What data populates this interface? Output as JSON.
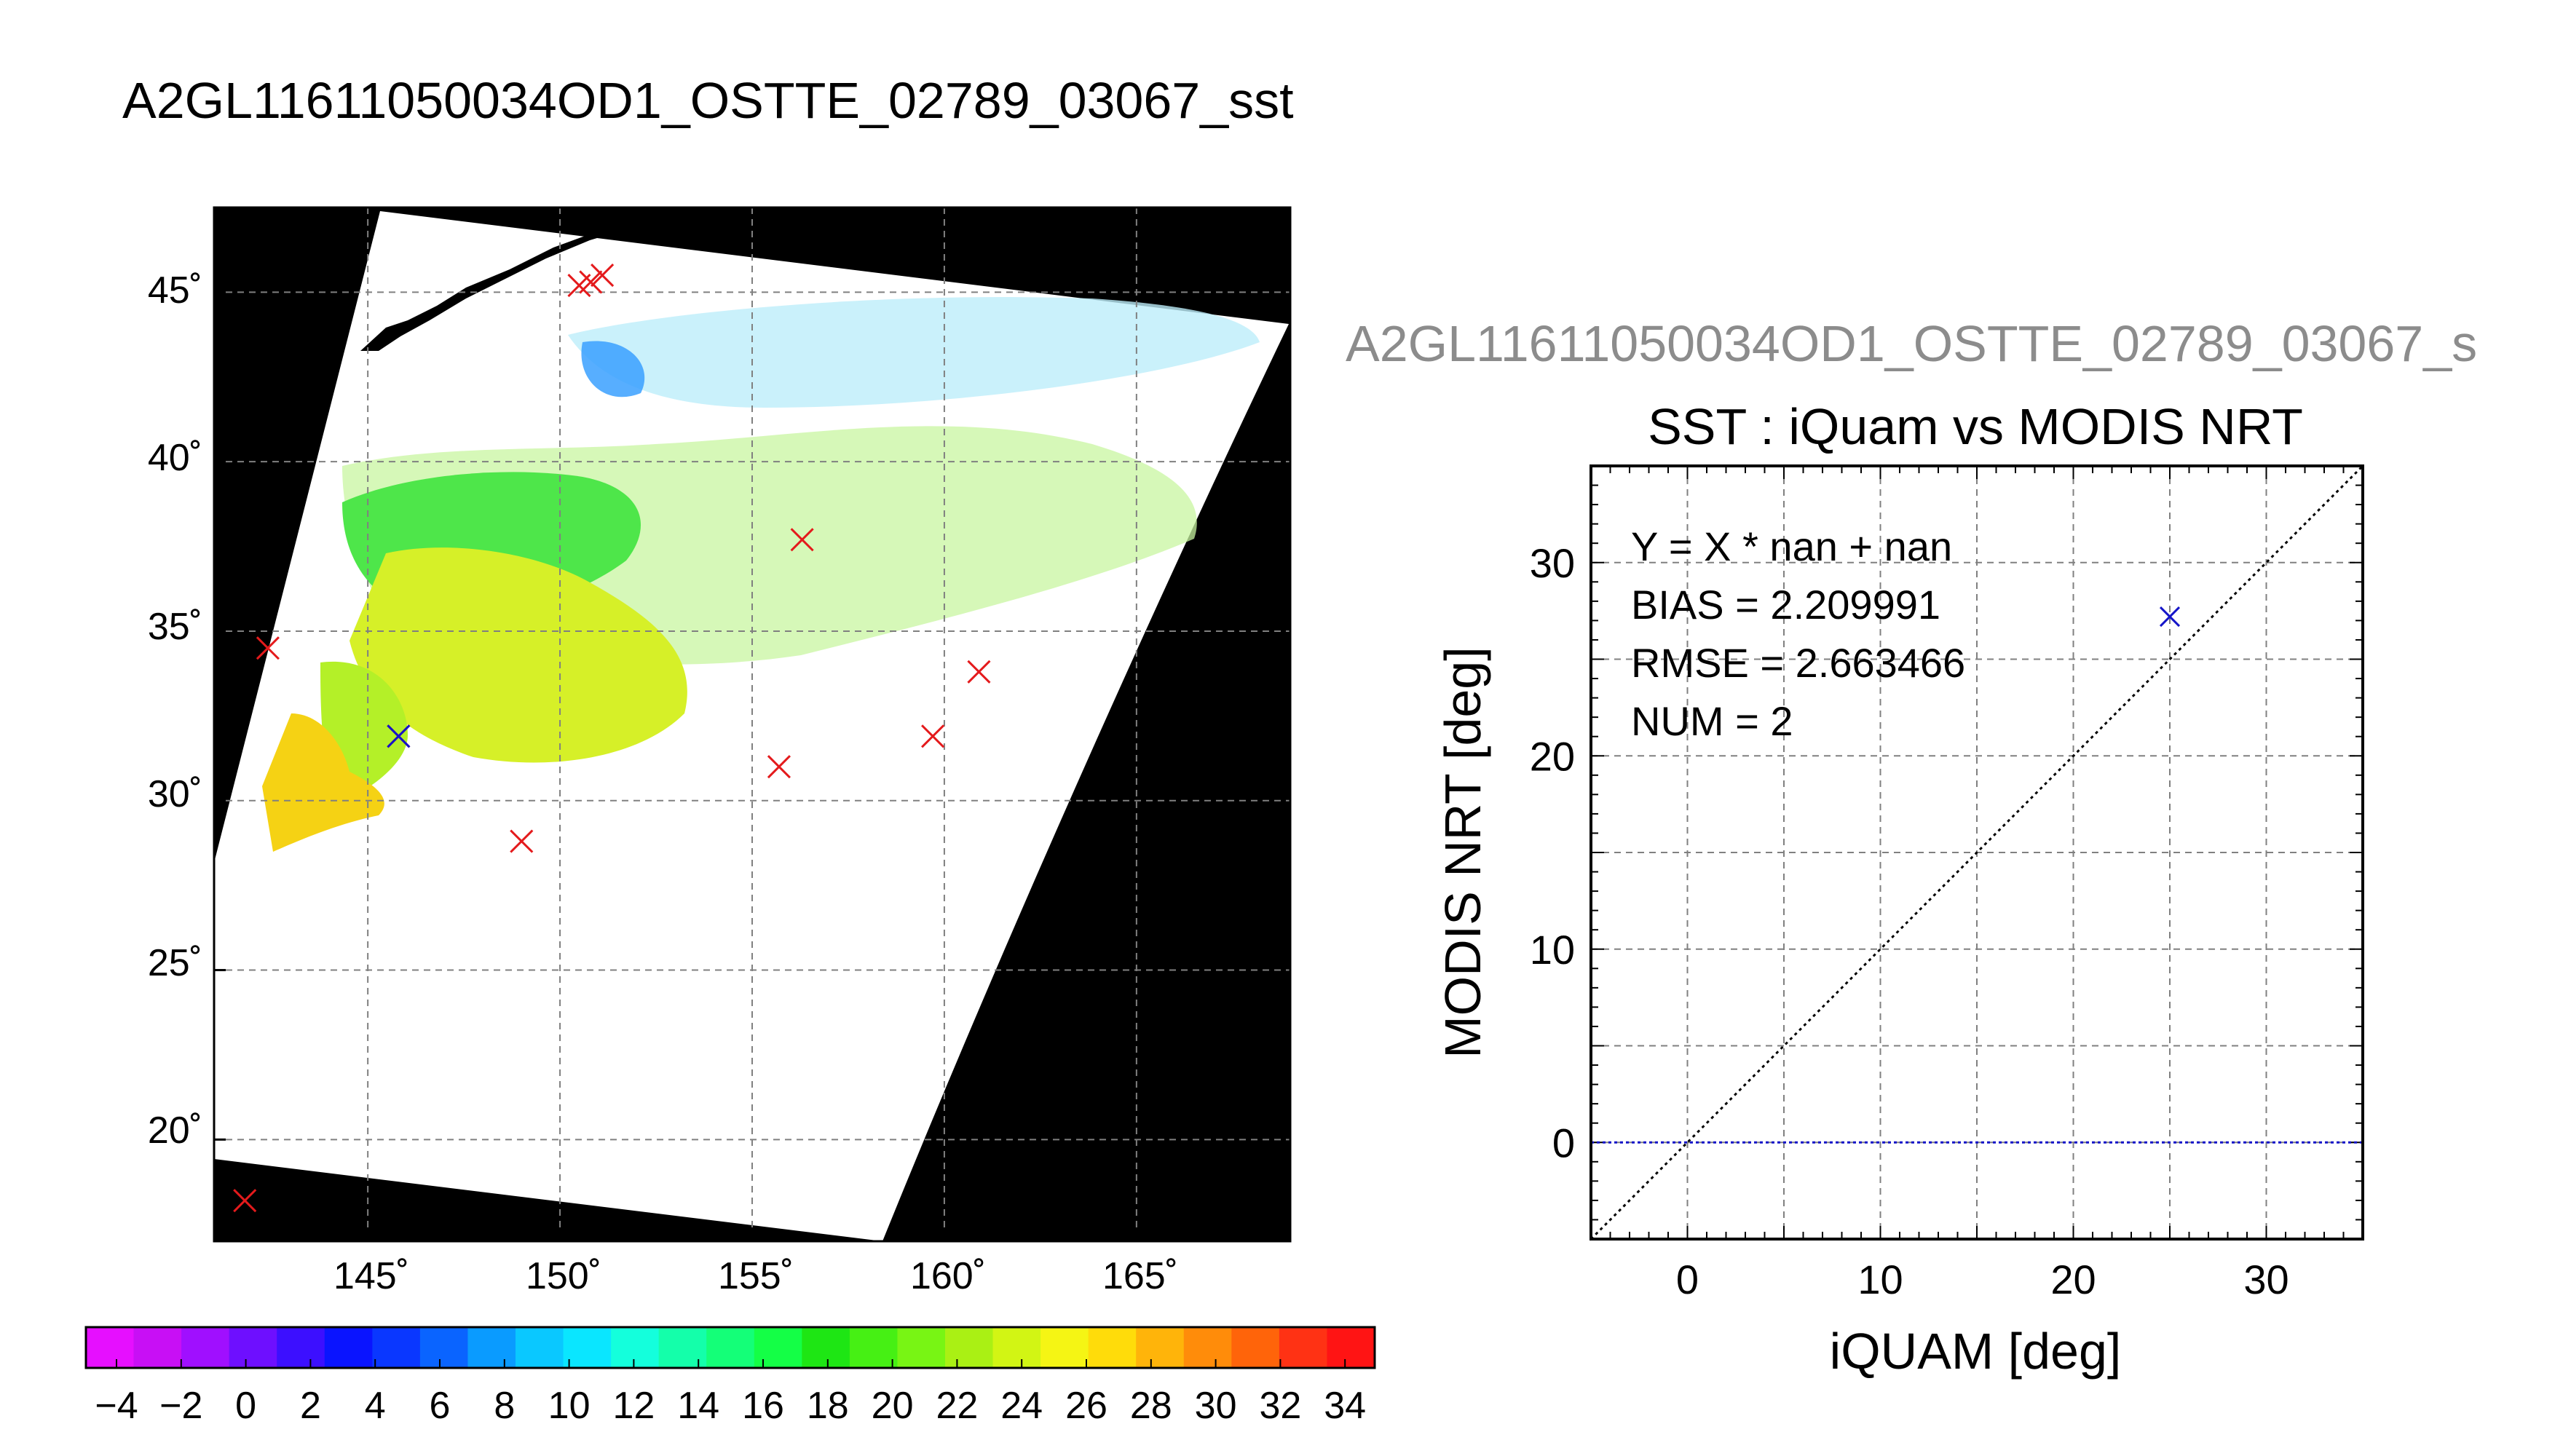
{
  "page_title": "A2GL11611050034OD1_OSTTE_02789_03067_sst",
  "map_panel": {
    "lat_ticks": [
      "20˚",
      "25˚",
      "30˚",
      "35˚",
      "40˚",
      "45˚"
    ],
    "lon_ticks": [
      "145˚",
      "150˚",
      "155˚",
      "160˚",
      "165˚"
    ],
    "background_color": "#000000",
    "swath_color": "#ffffff"
  },
  "colorbar": {
    "tick_labels": [
      "−4",
      "−2",
      "0",
      "2",
      "4",
      "6",
      "8",
      "10",
      "12",
      "14",
      "16",
      "18",
      "20",
      "22",
      "24",
      "26",
      "28",
      "30",
      "32",
      "34"
    ],
    "colors": [
      "#e60fff",
      "#c80ff5",
      "#a00fff",
      "#6e0fff",
      "#3c0fff",
      "#0a14ff",
      "#0a37ff",
      "#0a64ff",
      "#0a9bff",
      "#0ac8ff",
      "#0ae6ff",
      "#14ffdc",
      "#14ffaa",
      "#14ff78",
      "#14ff46",
      "#1ee614",
      "#46f014",
      "#78f514",
      "#aaf014",
      "#d2f514",
      "#f5f514",
      "#ffdc0a",
      "#ffb40a",
      "#ff8c0a",
      "#ff640a",
      "#ff3214",
      "#ff1414"
    ]
  },
  "scatter_panel": {
    "subtitle": "A2GL11611050034OD1_OSTTE_02789_03067_s",
    "stats": {
      "equation": "Y = X * nan + nan",
      "bias": "BIAS = 2.209991",
      "rmse": "RMSE = 2.663466",
      "num": "NUM = 2"
    }
  },
  "chart_data": [
    {
      "type": "scatter",
      "title": "",
      "description_units": "lon/lat degrees",
      "xlim": [
        141,
        169
      ],
      "ylim": [
        17,
        47.5
      ],
      "x_ticks": [
        145,
        150,
        155,
        160,
        165
      ],
      "y_ticks": [
        20,
        25,
        30,
        35,
        40,
        45
      ],
      "grid": true,
      "series": [
        {
          "marker": "x",
          "color": "#e41a1c",
          "points": [
            {
              "x": 141.8,
              "y": 18.2
            },
            {
              "x": 142.4,
              "y": 34.5
            },
            {
              "x": 145.8,
              "y": 31.9
            },
            {
              "x": 149.0,
              "y": 28.8
            },
            {
              "x": 150.5,
              "y": 45.2
            },
            {
              "x": 150.8,
              "y": 45.3
            },
            {
              "x": 151.1,
              "y": 45.5
            },
            {
              "x": 155.7,
              "y": 31.0
            },
            {
              "x": 156.3,
              "y": 37.7
            },
            {
              "x": 159.7,
              "y": 31.9
            },
            {
              "x": 160.9,
              "y": 33.8
            }
          ]
        },
        {
          "marker": "x",
          "color": "#1414c8",
          "points": [
            {
              "x": 145.8,
              "y": 31.9
            }
          ]
        }
      ]
    },
    {
      "type": "scatter",
      "title": "SST : iQuam vs MODIS NRT",
      "xlabel": "iQUAM [deg]",
      "ylabel": "MODIS NRT [deg]",
      "xlim": [
        -5,
        35
      ],
      "ylim": [
        -5,
        35
      ],
      "x_ticks": [
        0,
        10,
        20,
        30
      ],
      "y_ticks": [
        0,
        10,
        20,
        30
      ],
      "grid": true,
      "series": [
        {
          "marker": "x",
          "color": "#1414c8",
          "points": [
            {
              "x": 25.0,
              "y": 27.2
            }
          ]
        }
      ],
      "reference_lines": [
        {
          "kind": "one-to-one",
          "color": "#000000",
          "style": "dotted"
        },
        {
          "kind": "zero-bias",
          "y": 0,
          "color": "#1414c8",
          "style": "dotted"
        }
      ]
    }
  ]
}
